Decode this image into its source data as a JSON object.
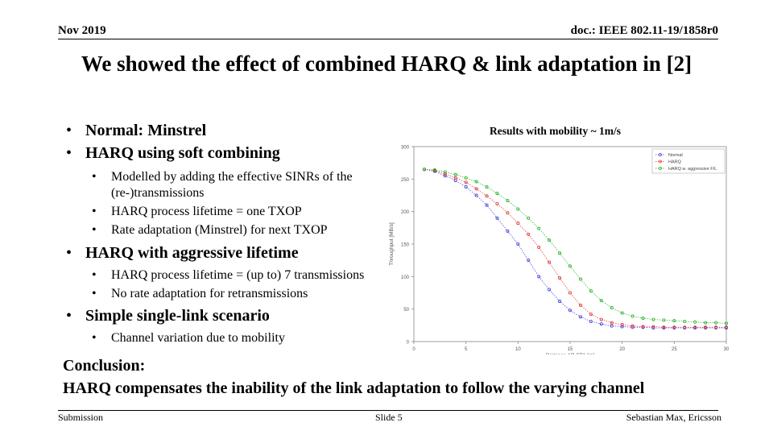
{
  "header": {
    "date": "Nov 2019",
    "doc": "doc.: IEEE 802.11-19/1858r0"
  },
  "title": "We showed the effect of combined HARQ & link adaptation in [2]",
  "bullets": {
    "b1": "Normal: Minstrel",
    "b2": "HARQ using soft combining",
    "b2_sub1": "Modelled by adding the effective SINRs of the (re-)transmissions",
    "b2_sub2": "HARQ process lifetime = one TXOP",
    "b2_sub3": "Rate adaptation (Minstrel) for next TXOP",
    "b3": "HARQ with aggressive lifetime",
    "b3_sub1": "HARQ process lifetime = (up to) 7 transmissions",
    "b3_sub2": "No rate adaptation for retransmissions",
    "b4": "Simple single-link scenario",
    "b4_sub1": "Channel variation due to mobility"
  },
  "conclusion": {
    "label": "Conclusion:",
    "text": "HARQ compensates the inability of the link adaptation to follow the varying channel"
  },
  "footer": {
    "left": "Submission",
    "mid": "Slide 5",
    "right": "Sebastian Max, Ericsson"
  },
  "chart_caption": "Results with mobility ~ 1m/s",
  "chart_data": {
    "type": "line",
    "xlabel": "Distance AP-STA [m]",
    "ylabel": "Throughput [MB/s]",
    "xlim": [
      0,
      30
    ],
    "ylim": [
      0,
      300
    ],
    "xticks": [
      0,
      5,
      10,
      15,
      20,
      25,
      30
    ],
    "yticks": [
      0,
      50,
      100,
      150,
      200,
      250,
      300
    ],
    "legend_position": "top-right",
    "x": [
      1,
      2,
      3,
      4,
      5,
      6,
      7,
      8,
      9,
      10,
      11,
      12,
      13,
      14,
      15,
      16,
      17,
      18,
      19,
      20,
      21,
      22,
      23,
      24,
      25,
      26,
      27,
      28,
      29,
      30
    ],
    "series": [
      {
        "name": "Normal",
        "color": "#3a3ae0",
        "values": [
          265,
          262,
          255,
          248,
          238,
          225,
          210,
          190,
          170,
          150,
          125,
          100,
          80,
          62,
          48,
          38,
          31,
          27,
          24,
          23,
          22,
          22,
          21,
          21,
          21,
          21,
          21,
          21,
          21,
          21
        ]
      },
      {
        "name": "HARQ",
        "color": "#e03030",
        "values": [
          265,
          263,
          258,
          252,
          245,
          235,
          224,
          212,
          198,
          182,
          165,
          145,
          122,
          98,
          75,
          56,
          42,
          34,
          29,
          26,
          24,
          23,
          23,
          22,
          22,
          22,
          22,
          22,
          22,
          22
        ]
      },
      {
        "name": "HARQ w. aggressive F/L",
        "color": "#22b022",
        "values": [
          265,
          264,
          261,
          257,
          252,
          246,
          238,
          228,
          217,
          204,
          190,
          174,
          156,
          136,
          116,
          96,
          78,
          63,
          52,
          44,
          39,
          36,
          34,
          33,
          32,
          31,
          30,
          29,
          29,
          28
        ]
      }
    ]
  }
}
